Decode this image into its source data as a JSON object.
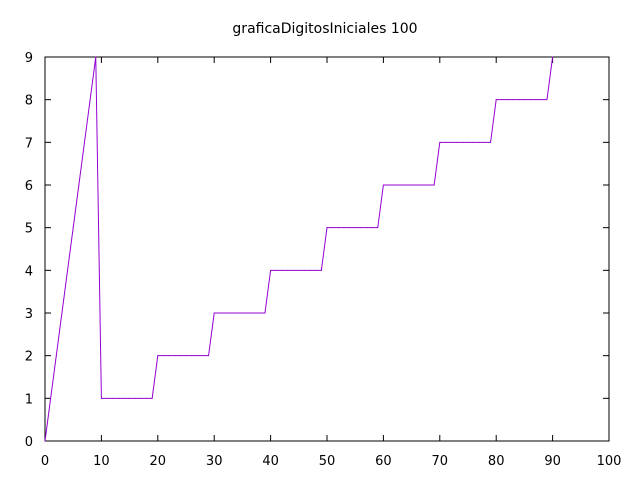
{
  "chart_data": {
    "type": "line",
    "title": "graficaDigitosIniciales 100",
    "xlabel": "",
    "ylabel": "",
    "xlim": [
      0,
      100
    ],
    "ylim": [
      0,
      9
    ],
    "xticks": [
      0,
      10,
      20,
      30,
      40,
      50,
      60,
      70,
      80,
      90,
      100
    ],
    "yticks": [
      0,
      1,
      2,
      3,
      4,
      5,
      6,
      7,
      8,
      9
    ],
    "grid": false,
    "legend": "none",
    "series": [
      {
        "color": "#9400d3",
        "x": [
          0,
          1,
          2,
          3,
          4,
          5,
          6,
          7,
          8,
          9,
          10,
          11,
          12,
          13,
          14,
          15,
          16,
          17,
          18,
          19,
          20,
          21,
          22,
          23,
          24,
          25,
          26,
          27,
          28,
          29,
          30,
          31,
          32,
          33,
          34,
          35,
          36,
          37,
          38,
          39,
          40,
          41,
          42,
          43,
          44,
          45,
          46,
          47,
          48,
          49,
          50,
          51,
          52,
          53,
          54,
          55,
          56,
          57,
          58,
          59,
          60,
          61,
          62,
          63,
          64,
          65,
          66,
          67,
          68,
          69,
          70,
          71,
          72,
          73,
          74,
          75,
          76,
          77,
          78,
          79,
          80,
          81,
          82,
          83,
          84,
          85,
          86,
          87,
          88,
          89,
          90
        ],
        "y": [
          0,
          1,
          2,
          3,
          4,
          5,
          6,
          7,
          8,
          9,
          1,
          1,
          1,
          1,
          1,
          1,
          1,
          1,
          1,
          1,
          2,
          2,
          2,
          2,
          2,
          2,
          2,
          2,
          2,
          2,
          3,
          3,
          3,
          3,
          3,
          3,
          3,
          3,
          3,
          3,
          4,
          4,
          4,
          4,
          4,
          4,
          4,
          4,
          4,
          4,
          5,
          5,
          5,
          5,
          5,
          5,
          5,
          5,
          5,
          5,
          6,
          6,
          6,
          6,
          6,
          6,
          6,
          6,
          6,
          6,
          7,
          7,
          7,
          7,
          7,
          7,
          7,
          7,
          7,
          7,
          8,
          8,
          8,
          8,
          8,
          8,
          8,
          8,
          8,
          8,
          9
        ]
      }
    ]
  }
}
